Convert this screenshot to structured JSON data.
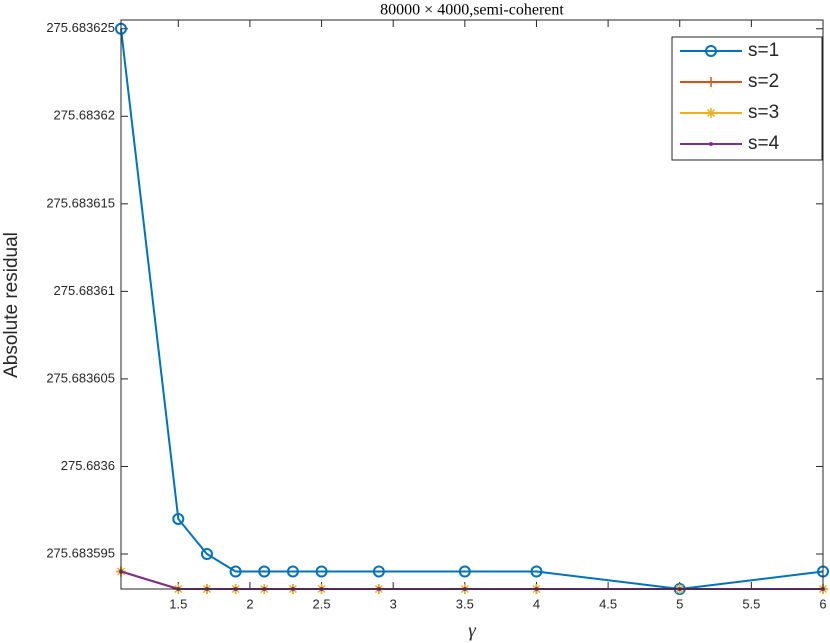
{
  "chart_data": {
    "type": "line",
    "title": "80000 × 4000,semi-coherent",
    "xlabel": "γ",
    "ylabel": "Absolute residual",
    "x": [
      1.1,
      1.5,
      1.7,
      1.9,
      2.1,
      2.3,
      2.5,
      2.9,
      3.5,
      4,
      5,
      6
    ],
    "series": [
      {
        "name": "s=1",
        "color": "#0072BD",
        "marker": "circle",
        "values": [
          275.683625,
          275.683597,
          275.683595,
          275.683594,
          275.683594,
          275.683594,
          275.683594,
          275.683594,
          275.683594,
          275.683594,
          275.683593,
          275.683594
        ]
      },
      {
        "name": "s=2",
        "color": "#D95319",
        "marker": "plus",
        "values": [
          275.683594,
          275.683593,
          275.683593,
          275.683593,
          275.683593,
          275.683593,
          275.683593,
          275.683593,
          275.683593,
          275.683593,
          275.683593,
          275.683593
        ]
      },
      {
        "name": "s=3",
        "color": "#EDB120",
        "marker": "asterisk",
        "values": [
          275.683594,
          275.683593,
          275.683593,
          275.683593,
          275.683593,
          275.683593,
          275.683593,
          275.683593,
          275.683593,
          275.683593,
          275.683593,
          275.683593
        ]
      },
      {
        "name": "s=4",
        "color": "#7E2F8E",
        "marker": "point",
        "values": [
          275.683594,
          275.683593,
          275.683593,
          275.683593,
          275.683593,
          275.683593,
          275.683593,
          275.683593,
          275.683593,
          275.683593,
          275.683593,
          275.683593
        ]
      }
    ],
    "xlim": [
      1.1,
      6
    ],
    "ylim": [
      275.683593,
      275.6836255
    ],
    "xticks": [
      1.5,
      2,
      2.5,
      3,
      3.5,
      4,
      4.5,
      5,
      5.5,
      6
    ],
    "yticks": [
      275.683595,
      275.6836,
      275.683605,
      275.68361,
      275.683615,
      275.68362,
      275.683625
    ],
    "grid": false,
    "legend": "top-right"
  }
}
